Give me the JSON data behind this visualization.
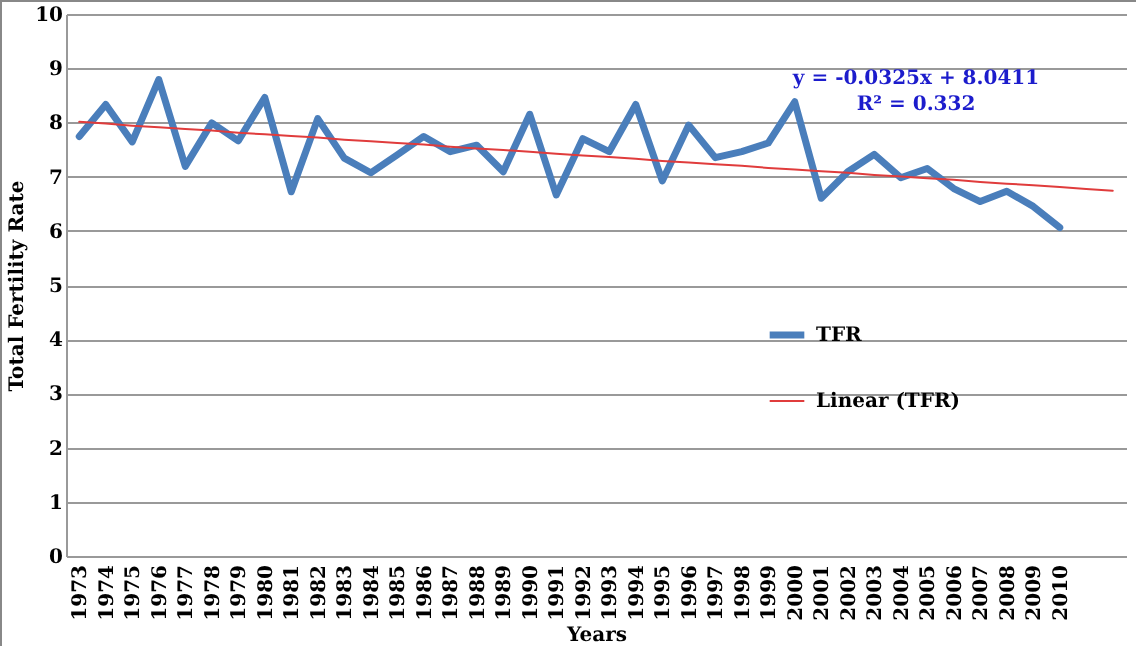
{
  "chart_data": {
    "type": "line",
    "xlabel": "Years",
    "ylabel": "Total Fertility Rate",
    "categories": [
      "1973",
      "1974",
      "1975",
      "1976",
      "1977",
      "1978",
      "1979",
      "1980",
      "1981",
      "1982",
      "1983",
      "1984",
      "1985",
      "1986",
      "1987",
      "1988",
      "1989",
      "1990",
      "1991",
      "1992",
      "1993",
      "1994",
      "1995",
      "1996",
      "1997",
      "1998",
      "1999",
      "2000",
      "2001",
      "2002",
      "2003",
      "2004",
      "2005",
      "2006",
      "2007",
      "2008",
      "2009",
      "2010",
      null,
      null
    ],
    "series": [
      {
        "name": "TFR",
        "color": "#4a7ebb",
        "values": [
          7.74,
          8.33,
          7.64,
          8.79,
          7.19,
          7.99,
          7.66,
          8.46,
          6.72,
          8.07,
          7.34,
          7.07,
          7.4,
          7.74,
          7.46,
          7.58,
          7.09,
          8.15,
          6.66,
          7.7,
          7.46,
          8.33,
          6.92,
          7.95,
          7.35,
          7.46,
          7.62,
          8.38,
          6.6,
          7.09,
          7.41,
          6.98,
          7.15,
          6.78,
          6.54,
          6.73,
          6.45,
          6.06,
          null,
          null
        ]
      },
      {
        "name": "Linear (TFR)",
        "color": "#e03c3c",
        "values": [
          8.01,
          7.98,
          7.94,
          7.91,
          7.88,
          7.85,
          7.81,
          7.78,
          7.75,
          7.72,
          7.68,
          7.65,
          7.62,
          7.59,
          7.55,
          7.52,
          7.49,
          7.46,
          7.42,
          7.39,
          7.36,
          7.33,
          7.29,
          7.26,
          7.23,
          7.2,
          7.16,
          7.13,
          7.1,
          7.07,
          7.03,
          7.0,
          6.97,
          6.94,
          6.9,
          6.87,
          6.84,
          6.81,
          6.77,
          6.74
        ]
      }
    ],
    "ylim": [
      0,
      10
    ],
    "yticks": [
      0,
      1,
      2,
      3,
      4,
      5,
      6,
      7,
      8,
      9,
      10
    ],
    "grid": "y",
    "legend": "right",
    "marker": "none",
    "line_style": "solid",
    "annotations": [
      "y = -0.0325x + 8.0411",
      "R² = 0.332"
    ]
  }
}
